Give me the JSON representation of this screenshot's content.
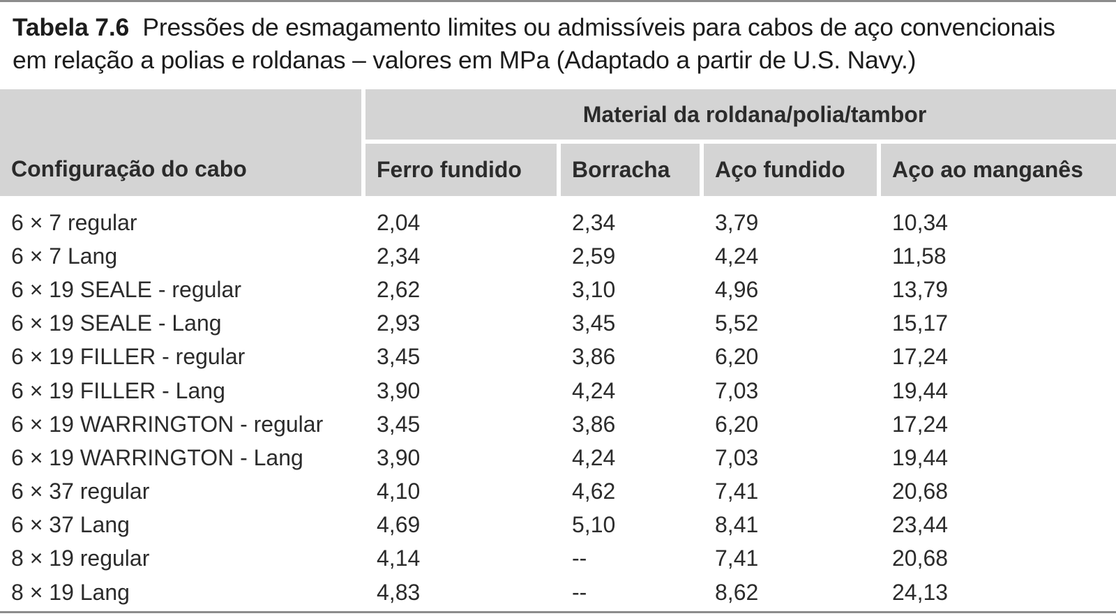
{
  "caption": {
    "label": "Tabela 7.6",
    "line1": "Pressões de esmagamento limites ou admissíveis para cabos de aço convencionais",
    "line2": "em relação a polias e roldanas – valores em MPa (Adaptado a partir de U.S. Navy.)"
  },
  "table": {
    "row_header": "Configuração do cabo",
    "group_header": "Material da roldana/polia/tambor",
    "columns": [
      "Ferro fundido",
      "Borracha",
      "Aço fundido",
      "Aço ao manganês"
    ],
    "rows": [
      {
        "config": "6 × 7 regular",
        "values": [
          "2,04",
          "2,34",
          "3,79",
          "10,34"
        ]
      },
      {
        "config": "6 × 7 Lang",
        "values": [
          "2,34",
          "2,59",
          "4,24",
          "11,58"
        ]
      },
      {
        "config": "6 × 19 SEALE - regular",
        "values": [
          "2,62",
          "3,10",
          "4,96",
          "13,79"
        ]
      },
      {
        "config": "6 × 19 SEALE - Lang",
        "values": [
          "2,93",
          "3,45",
          "5,52",
          "15,17"
        ]
      },
      {
        "config": "6 × 19 FILLER - regular",
        "values": [
          "3,45",
          "3,86",
          "6,20",
          "17,24"
        ]
      },
      {
        "config": "6 × 19 FILLER - Lang",
        "values": [
          "3,90",
          "4,24",
          "7,03",
          "19,44"
        ]
      },
      {
        "config": "6 × 19 WARRINGTON - regular",
        "values": [
          "3,45",
          "3,86",
          "6,20",
          "17,24"
        ]
      },
      {
        "config": "6 × 19 WARRINGTON - Lang",
        "values": [
          "3,90",
          "4,24",
          "7,03",
          "19,44"
        ]
      },
      {
        "config": "6 × 37 regular",
        "values": [
          "4,10",
          "4,62",
          "7,41",
          "20,68"
        ]
      },
      {
        "config": "6 × 37 Lang",
        "values": [
          "4,69",
          "5,10",
          "8,41",
          "23,44"
        ]
      },
      {
        "config": "8 × 19 regular",
        "values": [
          "4,14",
          "--",
          "7,41",
          "20,68"
        ]
      },
      {
        "config": "8 × 19 Lang",
        "values": [
          "4,83",
          "--",
          "8,62",
          "24,13"
        ]
      }
    ]
  },
  "colors": {
    "header_fill": "#d4d4d4",
    "rule": "#8c8c8c",
    "text": "#2b2b2b"
  }
}
